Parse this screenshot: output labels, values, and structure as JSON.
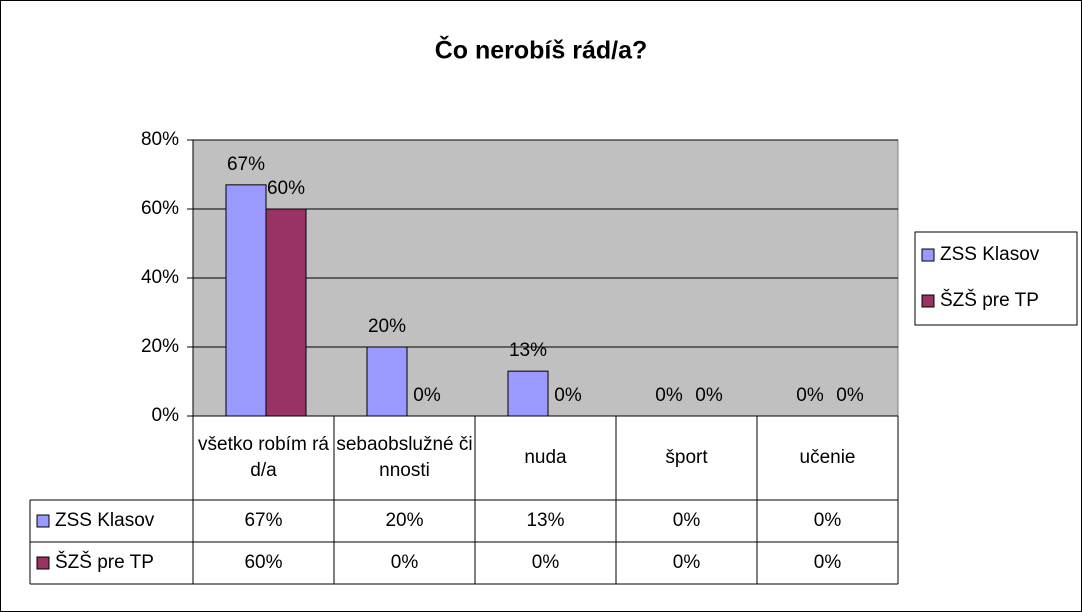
{
  "chart_data": {
    "type": "bar",
    "title": "Čo nerobíš rád/a?",
    "categories": [
      "všetko robím rád/a",
      "sebaobslužné činnosti",
      "nuda",
      "šport",
      "učenie"
    ],
    "series": [
      {
        "name": "ZSS Klasov",
        "color": "#9999ff",
        "values": [
          67,
          20,
          13,
          0,
          0
        ],
        "value_labels": [
          "67%",
          "20%",
          "13%",
          "0%",
          "0%"
        ]
      },
      {
        "name": "ŠZŠ pre TP",
        "color": "#993366",
        "values": [
          60,
          0,
          0,
          0,
          0
        ],
        "value_labels": [
          "60%",
          "0%",
          "0%",
          "0%",
          "0%"
        ]
      }
    ],
    "ylim": [
      0,
      80
    ],
    "yticks": [
      {
        "value": 0,
        "label": "0%"
      },
      {
        "value": 20,
        "label": "20%"
      },
      {
        "value": 40,
        "label": "40%"
      },
      {
        "value": 60,
        "label": "60%"
      },
      {
        "value": 80,
        "label": "80%"
      }
    ],
    "grid": true,
    "legend": "right",
    "plot_background": "#c0c0c0"
  }
}
